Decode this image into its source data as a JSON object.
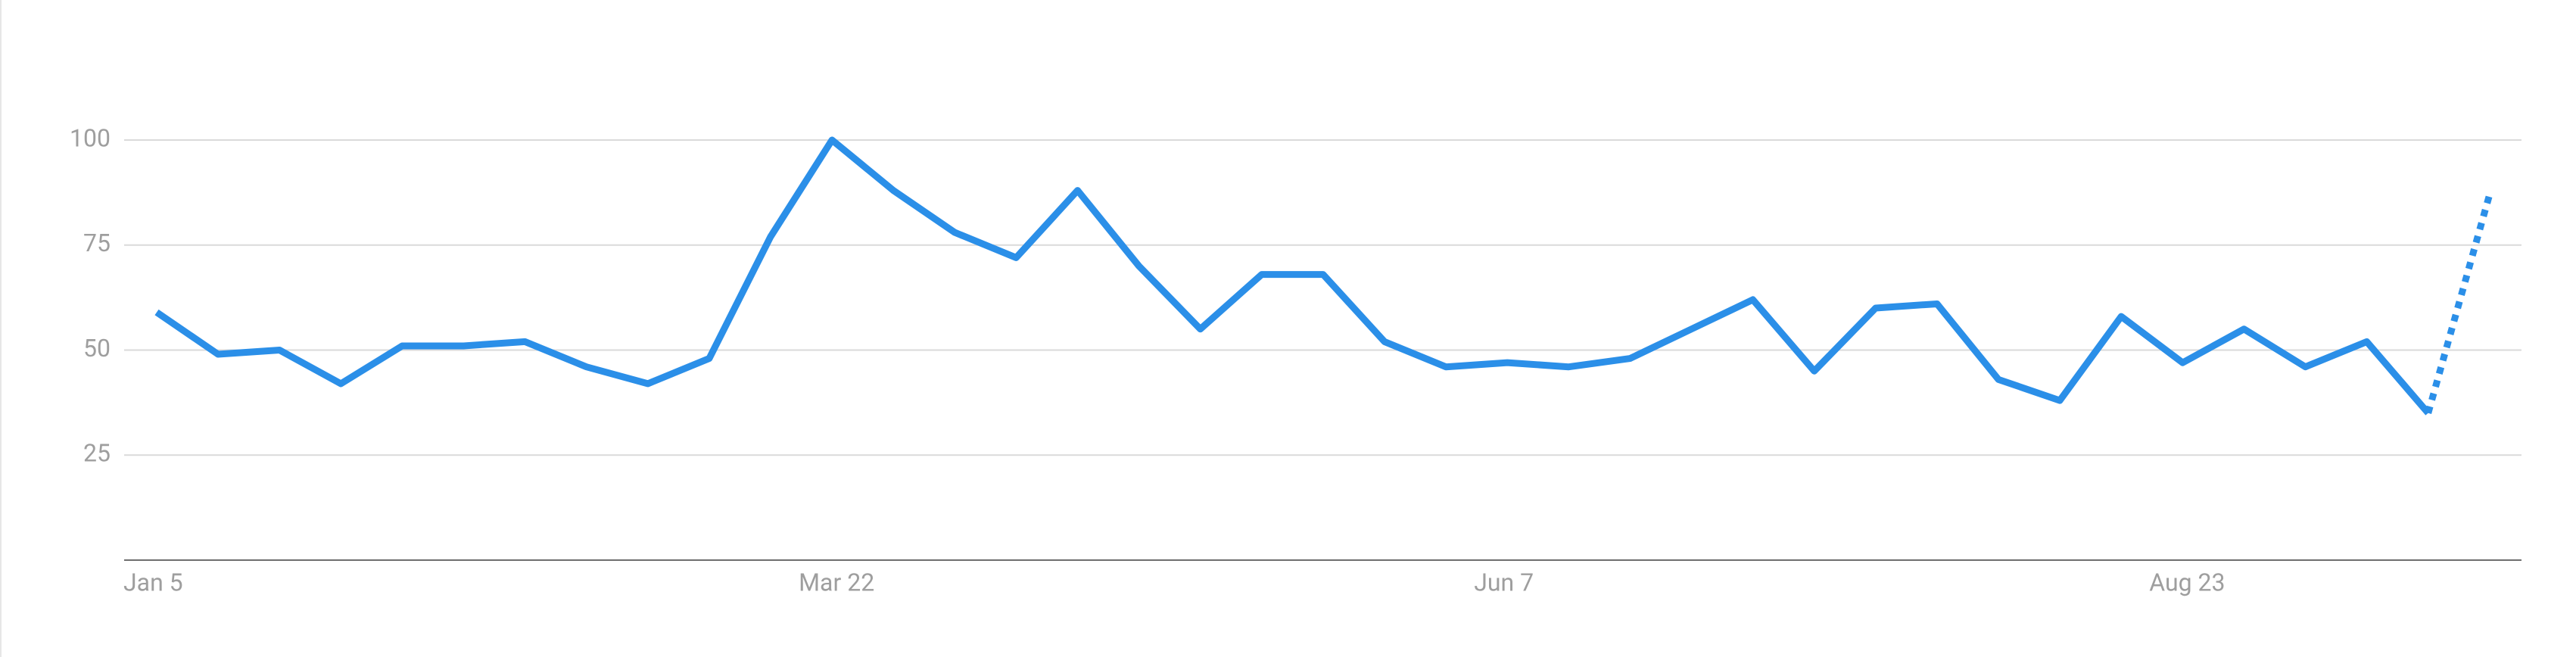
{
  "chart_data": {
    "type": "line",
    "categories": [
      "Jan 5",
      null,
      null,
      null,
      null,
      null,
      null,
      null,
      null,
      null,
      null,
      "Mar 22",
      null,
      null,
      null,
      null,
      null,
      null,
      null,
      null,
      null,
      null,
      "Jun 7",
      null,
      null,
      null,
      null,
      null,
      null,
      null,
      null,
      null,
      null,
      "Aug 23",
      null,
      null,
      null,
      null,
      null
    ],
    "series": [
      {
        "color": "#2b8fe8",
        "values": [
          59,
          49,
          50,
          42,
          51,
          51,
          52,
          46,
          42,
          48,
          77,
          100,
          88,
          78,
          72,
          88,
          70,
          55,
          68,
          68,
          52,
          46,
          47,
          46,
          48,
          55,
          62,
          45,
          60,
          61,
          43,
          38,
          58,
          47,
          55,
          46,
          52,
          35,
          87
        ]
      }
    ],
    "ylim": [
      0,
      100
    ],
    "yticks": [
      25,
      50,
      75,
      100
    ],
    "grid": true,
    "dashed_last_segment": true
  }
}
